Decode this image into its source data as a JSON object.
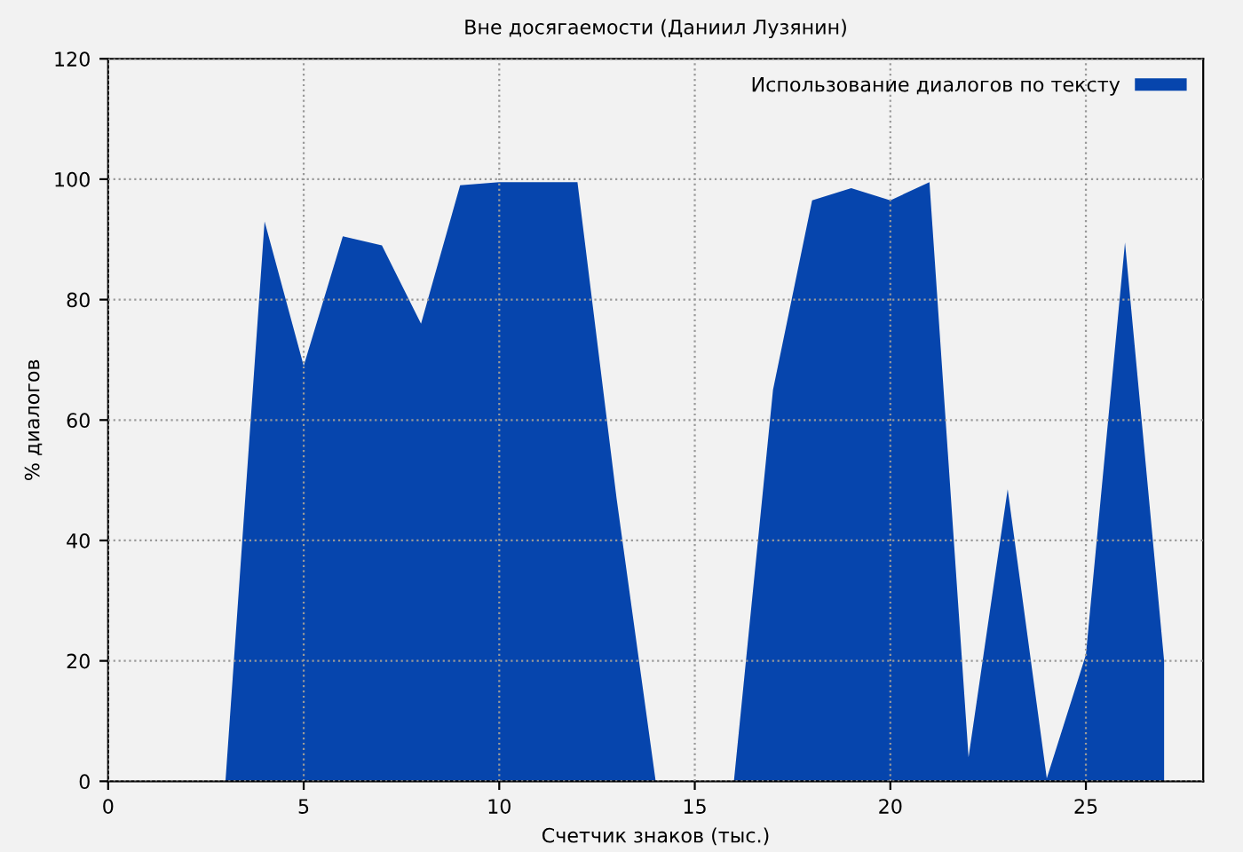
{
  "chart_data": {
    "type": "area",
    "title": "Вне досягаемости (Даниил Лузянин)",
    "xlabel": "Счетчик знаков (тыс.)",
    "ylabel": "% диалогов",
    "x": [
      0,
      1,
      2,
      3,
      4,
      5,
      6,
      7,
      8,
      9,
      10,
      11,
      12,
      13,
      14,
      15,
      16,
      17,
      18,
      19,
      20,
      21,
      22,
      23,
      24,
      25,
      26,
      27
    ],
    "series": [
      {
        "name": "Использование диалогов по тексту",
        "color": "#0645ad",
        "values": [
          0,
          0,
          0,
          0,
          93,
          69,
          90.5,
          89,
          76,
          99,
          99.5,
          99.5,
          99.5,
          47,
          0,
          0,
          0,
          65,
          96.5,
          98.5,
          96.5,
          99.5,
          4,
          48.5,
          0.5,
          21,
          89.5,
          20
        ]
      }
    ],
    "xlim": [
      0,
      28
    ],
    "xticks": [
      0,
      5,
      10,
      15,
      20,
      25
    ],
    "ylim": [
      0,
      120
    ],
    "yticks": [
      0,
      20,
      40,
      60,
      80,
      100,
      120
    ],
    "grid": true,
    "line_style": "dotted",
    "legend": "top right"
  }
}
